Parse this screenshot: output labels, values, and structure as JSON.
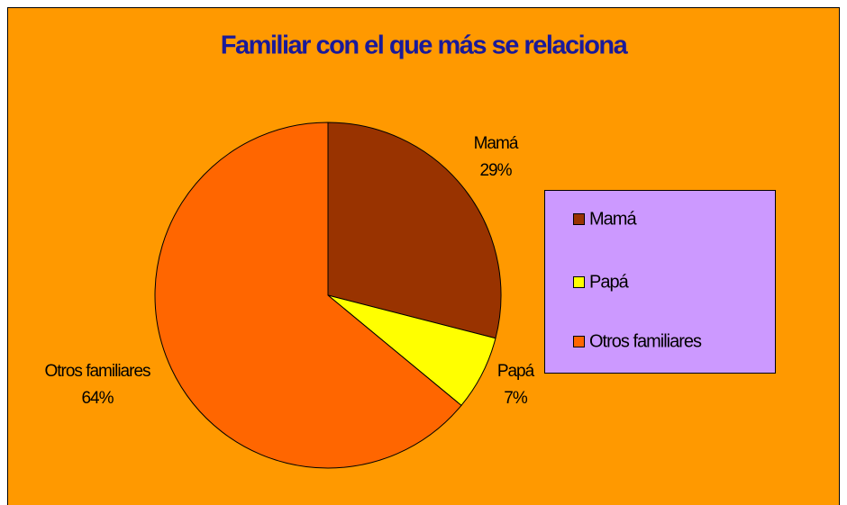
{
  "chart_data": {
    "type": "pie",
    "title": "Familiar con el que más se relaciona",
    "categories": [
      "Mamá",
      "Papá",
      "Otros familiares"
    ],
    "values": [
      29,
      7,
      64
    ],
    "value_labels": [
      "29%",
      "7%",
      "64%"
    ],
    "colors": [
      "#993300",
      "#FFFF00",
      "#FF6600"
    ],
    "legend": "right"
  }
}
